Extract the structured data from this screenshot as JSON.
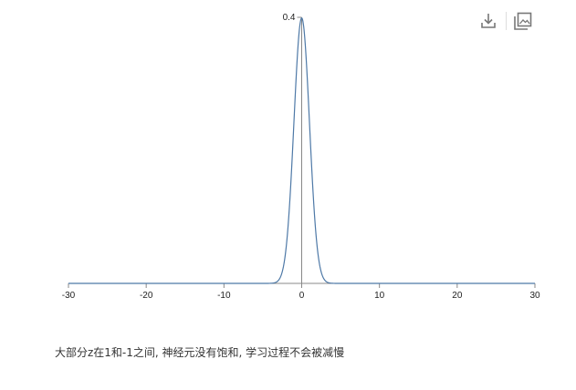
{
  "chart_data": {
    "type": "line",
    "title": "",
    "xlabel": "",
    "ylabel": "",
    "xlim": [
      -30,
      30
    ],
    "ylim": [
      0,
      0.4
    ],
    "x_ticks": [
      -30,
      -20,
      -10,
      0,
      10,
      20,
      30
    ],
    "x_tick_labels": [
      "-30",
      "-20",
      "-10",
      "0",
      "10",
      "20",
      "30"
    ],
    "y_ticks": [
      0.4
    ],
    "y_tick_labels": [
      "0.4"
    ],
    "grid": false,
    "legend": "none",
    "series": [
      {
        "color": "#4e79a7",
        "function": "standard normal pdf",
        "x": [
          -30,
          -10,
          -5,
          -4,
          -3.5,
          -3,
          -2.5,
          -2,
          -1.5,
          -1,
          -0.5,
          0,
          0.5,
          1,
          1.5,
          2,
          2.5,
          3,
          3.5,
          4,
          5,
          10,
          30
        ],
        "y": [
          0,
          0,
          1.5e-06,
          0.000134,
          0.000873,
          0.004432,
          0.017528,
          0.053991,
          0.129518,
          0.241971,
          0.352065,
          0.398942,
          0.352065,
          0.241971,
          0.129518,
          0.053991,
          0.017528,
          0.004432,
          0.000873,
          0.000134,
          1.5e-06,
          0,
          0
        ]
      }
    ]
  },
  "toolbar": {
    "download_icon": "download-icon",
    "gallery_icon": "gallery-icon"
  },
  "caption": "大部分z在1和-1之间, 神经元没有饱和, 学习过程不会被减慢"
}
